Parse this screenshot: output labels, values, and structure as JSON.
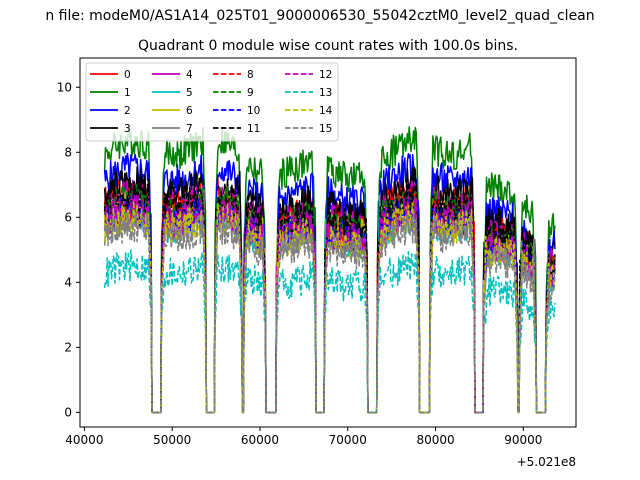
{
  "figure": {
    "suptitle": "n file: modeM0/AS1A14_025T01_9000006530_55042cztM0_level2_quad_clean"
  },
  "chart_data": {
    "type": "line",
    "title": "Quadrant 0 module wise count rates with 100.0s bins.",
    "xlabel": "",
    "ylabel": "",
    "x_offset_label": "+5.021e8",
    "xlim": [
      39500,
      96000
    ],
    "ylim": [
      -0.45,
      10.9
    ],
    "xticks": [
      40000,
      50000,
      60000,
      70000,
      80000,
      90000
    ],
    "xtick_labels": [
      "40000",
      "50000",
      "60000",
      "70000",
      "80000",
      "90000"
    ],
    "yticks": [
      0,
      2,
      4,
      6,
      8,
      10
    ],
    "ytick_labels": [
      "0",
      "2",
      "4",
      "6",
      "8",
      "10"
    ],
    "grid": false,
    "legend_placement": "top-left",
    "legend_columns": 4,
    "x_range_data": [
      42300,
      93600
    ],
    "gaps": [
      [
        47700,
        48700
      ],
      [
        53900,
        54800
      ],
      [
        58000,
        58100
      ],
      [
        60700,
        61800
      ],
      [
        66400,
        67300
      ],
      [
        72300,
        73300
      ],
      [
        78200,
        79300
      ],
      [
        84500,
        85400
      ],
      [
        89400,
        89500
      ],
      [
        91500,
        92500
      ]
    ],
    "series": [
      {
        "name": "0",
        "color": "#ff0000",
        "dash": "solid",
        "level": 6.4
      },
      {
        "name": "1",
        "color": "#008000",
        "dash": "solid",
        "level": 7.8
      },
      {
        "name": "2",
        "color": "#0000ff",
        "dash": "solid",
        "level": 7.0
      },
      {
        "name": "3",
        "color": "#000000",
        "dash": "solid",
        "level": 6.6
      },
      {
        "name": "4",
        "color": "#bf00bf",
        "dash": "solid",
        "level": 6.2
      },
      {
        "name": "5",
        "color": "#00bfbf",
        "dash": "solid",
        "level": 5.6
      },
      {
        "name": "6",
        "color": "#bfbf00",
        "dash": "solid",
        "level": 5.9
      },
      {
        "name": "7",
        "color": "#808080",
        "dash": "solid",
        "level": 5.5
      },
      {
        "name": "8",
        "color": "#ff0000",
        "dash": "dashed",
        "level": 6.0
      },
      {
        "name": "9",
        "color": "#008000",
        "dash": "dashed",
        "level": 6.1
      },
      {
        "name": "10",
        "color": "#0000ff",
        "dash": "dashed",
        "level": 5.8
      },
      {
        "name": "11",
        "color": "#000000",
        "dash": "dashed",
        "level": 6.2
      },
      {
        "name": "12",
        "color": "#bf00bf",
        "dash": "dashed",
        "level": 5.8
      },
      {
        "name": "13",
        "color": "#00bfbf",
        "dash": "dashed",
        "level": 4.2
      },
      {
        "name": "14",
        "color": "#bfbf00",
        "dash": "dashed",
        "level": 5.6
      },
      {
        "name": "15",
        "color": "#808080",
        "dash": "dashed",
        "level": 5.3
      }
    ]
  }
}
